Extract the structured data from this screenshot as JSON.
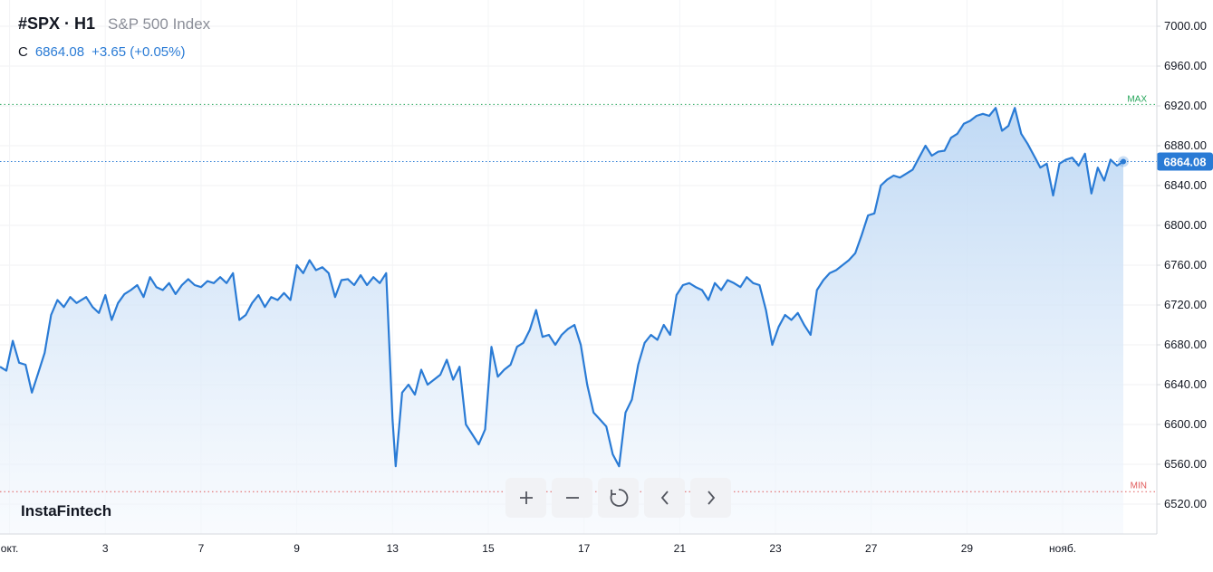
{
  "header": {
    "symbol": "#SPX · H1",
    "name": "S&P 500 Index"
  },
  "quote": {
    "label": "C",
    "price": "6864.08",
    "change": "+3.65 (+0.05%)"
  },
  "brand": "InstaFintech",
  "toolbar": {
    "zoom_in": "plus-icon",
    "zoom_out": "minus-icon",
    "reset": "reset-icon",
    "back": "chevron-left-icon",
    "forward": "chevron-right-icon"
  },
  "markers": {
    "max_label": "MAX",
    "min_label": "MIN",
    "max_value": 6921.5,
    "min_value": 6532.5,
    "last_price_label": "6864.08"
  },
  "colors": {
    "line": "#2a7bd5",
    "area_top": "#bcd7f4",
    "area_bottom": "#f4f8fd",
    "max": "#26a65b",
    "min": "#e05a5a",
    "price_tag": "#2a7bd5"
  },
  "chart_data": {
    "type": "area",
    "title": "",
    "xlabel": "",
    "ylabel": "",
    "ylim": [
      6500,
      7015
    ],
    "y_ticks": [
      "7000.00",
      "6960.00",
      "6920.00",
      "6880.00",
      "6840.00",
      "6800.00",
      "6760.00",
      "6720.00",
      "6680.00",
      "6640.00",
      "6600.00",
      "6560.00",
      "6520.00"
    ],
    "y_tick_values": [
      7000,
      6960,
      6920,
      6880,
      6840,
      6800,
      6760,
      6720,
      6680,
      6640,
      6600,
      6560,
      6520
    ],
    "x_ticks": [
      "окт.",
      "3",
      "7",
      "9",
      "13",
      "15",
      "17",
      "21",
      "23",
      "27",
      "29",
      "нояб."
    ],
    "x_tick_index": [
      3,
      33,
      63,
      93,
      123,
      153,
      183,
      213,
      243,
      273,
      303,
      333
    ],
    "x_range": [
      0,
      345
    ],
    "grid": true,
    "series": [
      {
        "values": [
          [
            0,
            6658
          ],
          [
            2,
            6654
          ],
          [
            4,
            6684
          ],
          [
            6,
            6662
          ],
          [
            8,
            6660
          ],
          [
            10,
            6632
          ],
          [
            12,
            6652
          ],
          [
            14,
            6672
          ],
          [
            16,
            6710
          ],
          [
            18,
            6725
          ],
          [
            20,
            6718
          ],
          [
            22,
            6728
          ],
          [
            24,
            6722
          ],
          [
            27,
            6728
          ],
          [
            29,
            6718
          ],
          [
            31,
            6712
          ],
          [
            33,
            6730
          ],
          [
            35,
            6705
          ],
          [
            37,
            6722
          ],
          [
            39,
            6731
          ],
          [
            41,
            6735
          ],
          [
            43,
            6740
          ],
          [
            45,
            6728
          ],
          [
            47,
            6748
          ],
          [
            49,
            6738
          ],
          [
            51,
            6735
          ],
          [
            53,
            6742
          ],
          [
            55,
            6731
          ],
          [
            57,
            6740
          ],
          [
            59,
            6746
          ],
          [
            61,
            6740
          ],
          [
            63,
            6738
          ],
          [
            65,
            6744
          ],
          [
            67,
            6742
          ],
          [
            69,
            6748
          ],
          [
            71,
            6742
          ],
          [
            73,
            6752
          ],
          [
            75,
            6705
          ],
          [
            77,
            6710
          ],
          [
            79,
            6722
          ],
          [
            81,
            6730
          ],
          [
            83,
            6718
          ],
          [
            85,
            6728
          ],
          [
            87,
            6725
          ],
          [
            89,
            6732
          ],
          [
            91,
            6725
          ],
          [
            93,
            6760
          ],
          [
            95,
            6752
          ],
          [
            97,
            6765
          ],
          [
            99,
            6755
          ],
          [
            101,
            6758
          ],
          [
            103,
            6752
          ],
          [
            105,
            6728
          ],
          [
            107,
            6745
          ],
          [
            109,
            6746
          ],
          [
            111,
            6740
          ],
          [
            113,
            6750
          ],
          [
            115,
            6740
          ],
          [
            117,
            6748
          ],
          [
            119,
            6742
          ],
          [
            121,
            6752
          ],
          [
            123,
            6605
          ],
          [
            124,
            6558
          ],
          [
            126,
            6632
          ],
          [
            128,
            6640
          ],
          [
            130,
            6630
          ],
          [
            132,
            6655
          ],
          [
            134,
            6640
          ],
          [
            136,
            6645
          ],
          [
            138,
            6650
          ],
          [
            140,
            6665
          ],
          [
            142,
            6645
          ],
          [
            144,
            6658
          ],
          [
            146,
            6600
          ],
          [
            148,
            6590
          ],
          [
            150,
            6580
          ],
          [
            152,
            6595
          ],
          [
            154,
            6678
          ],
          [
            156,
            6648
          ],
          [
            158,
            6655
          ],
          [
            160,
            6660
          ],
          [
            162,
            6678
          ],
          [
            164,
            6682
          ],
          [
            166,
            6695
          ],
          [
            168,
            6715
          ],
          [
            170,
            6688
          ],
          [
            172,
            6690
          ],
          [
            174,
            6680
          ],
          [
            176,
            6690
          ],
          [
            178,
            6696
          ],
          [
            180,
            6700
          ],
          [
            182,
            6680
          ],
          [
            184,
            6640
          ],
          [
            186,
            6612
          ],
          [
            188,
            6605
          ],
          [
            190,
            6598
          ],
          [
            192,
            6570
          ],
          [
            194,
            6558
          ],
          [
            196,
            6612
          ],
          [
            198,
            6625
          ],
          [
            200,
            6660
          ],
          [
            202,
            6682
          ],
          [
            204,
            6690
          ],
          [
            206,
            6685
          ],
          [
            208,
            6700
          ],
          [
            210,
            6690
          ],
          [
            212,
            6730
          ],
          [
            214,
            6740
          ],
          [
            216,
            6742
          ],
          [
            218,
            6738
          ],
          [
            220,
            6735
          ],
          [
            222,
            6725
          ],
          [
            224,
            6742
          ],
          [
            226,
            6735
          ],
          [
            228,
            6745
          ],
          [
            230,
            6742
          ],
          [
            232,
            6738
          ],
          [
            234,
            6748
          ],
          [
            236,
            6742
          ],
          [
            238,
            6740
          ],
          [
            240,
            6715
          ],
          [
            242,
            6680
          ],
          [
            244,
            6698
          ],
          [
            246,
            6710
          ],
          [
            248,
            6705
          ],
          [
            250,
            6712
          ],
          [
            252,
            6700
          ],
          [
            254,
            6690
          ],
          [
            256,
            6735
          ],
          [
            258,
            6745
          ],
          [
            260,
            6752
          ],
          [
            262,
            6755
          ],
          [
            264,
            6760
          ],
          [
            266,
            6765
          ],
          [
            268,
            6772
          ],
          [
            270,
            6790
          ],
          [
            272,
            6810
          ],
          [
            274,
            6812
          ],
          [
            276,
            6840
          ],
          [
            278,
            6846
          ],
          [
            280,
            6850
          ],
          [
            282,
            6848
          ],
          [
            284,
            6852
          ],
          [
            286,
            6856
          ],
          [
            288,
            6868
          ],
          [
            290,
            6880
          ],
          [
            292,
            6870
          ],
          [
            294,
            6874
          ],
          [
            296,
            6875
          ],
          [
            298,
            6888
          ],
          [
            300,
            6892
          ],
          [
            302,
            6902
          ],
          [
            304,
            6905
          ],
          [
            306,
            6910
          ],
          [
            308,
            6912
          ],
          [
            310,
            6910
          ],
          [
            312,
            6918
          ],
          [
            314,
            6895
          ],
          [
            316,
            6900
          ],
          [
            318,
            6918
          ],
          [
            320,
            6892
          ],
          [
            322,
            6882
          ],
          [
            324,
            6870
          ],
          [
            326,
            6858
          ],
          [
            328,
            6862
          ],
          [
            330,
            6830
          ],
          [
            332,
            6862
          ],
          [
            334,
            6866
          ],
          [
            336,
            6868
          ],
          [
            338,
            6860
          ],
          [
            340,
            6872
          ],
          [
            342,
            6832
          ],
          [
            344,
            6858
          ],
          [
            346,
            6845
          ],
          [
            348,
            6866
          ],
          [
            350,
            6860
          ],
          [
            352,
            6864.08
          ]
        ]
      }
    ]
  }
}
